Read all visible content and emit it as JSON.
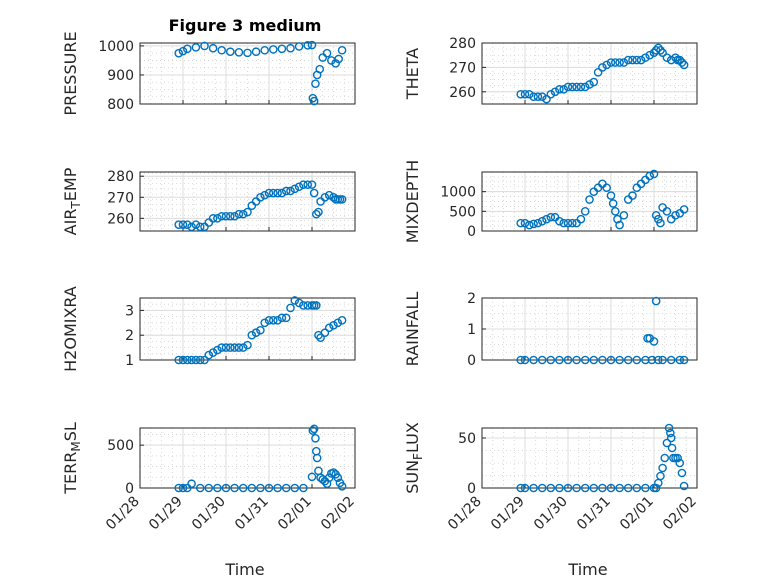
{
  "figure": {
    "title": "Figure 3 medium",
    "accent_color": "#0072bd",
    "x_tick_labels": [
      "01/28",
      "01/29",
      "01/30",
      "01/31",
      "02/01",
      "02/02"
    ],
    "x_label": "Time"
  },
  "chart_data": [
    {
      "type": "scatter",
      "ylabel": "PRESSURE",
      "xlim": [
        0,
        5
      ],
      "ylim": [
        800,
        1010
      ],
      "yticks": [
        800,
        900,
        1000
      ],
      "grid": true,
      "x": [
        0.9,
        1.0,
        1.1,
        1.3,
        1.5,
        1.7,
        1.9,
        2.1,
        2.3,
        2.5,
        2.7,
        2.9,
        3.1,
        3.3,
        3.5,
        3.7,
        3.9,
        4.0,
        4.02,
        4.05,
        4.08,
        4.12,
        4.18,
        4.25,
        4.35,
        4.45,
        4.55,
        4.62,
        4.7
      ],
      "y": [
        975,
        982,
        990,
        995,
        1000,
        992,
        985,
        980,
        978,
        976,
        980,
        985,
        988,
        990,
        992,
        998,
        1002,
        1003,
        820,
        810,
        870,
        900,
        920,
        960,
        975,
        950,
        940,
        955,
        985
      ]
    },
    {
      "type": "scatter",
      "ylabel": "THETA",
      "xlim": [
        0,
        5
      ],
      "ylim": [
        255,
        280
      ],
      "yticks": [
        260,
        270,
        280
      ],
      "grid": true,
      "x": [
        0.9,
        1.0,
        1.1,
        1.2,
        1.3,
        1.4,
        1.5,
        1.6,
        1.7,
        1.8,
        1.9,
        2.0,
        2.1,
        2.2,
        2.3,
        2.4,
        2.5,
        2.6,
        2.7,
        2.8,
        2.9,
        3.0,
        3.1,
        3.2,
        3.3,
        3.4,
        3.5,
        3.6,
        3.7,
        3.8,
        3.9,
        4.0,
        4.05,
        4.1,
        4.15,
        4.2,
        4.3,
        4.4,
        4.5,
        4.55,
        4.6,
        4.65,
        4.7
      ],
      "y": [
        259,
        259,
        259,
        258,
        258,
        258,
        257,
        259,
        260,
        261,
        261,
        262,
        262,
        262,
        262,
        262,
        263,
        264,
        268,
        270,
        271,
        272,
        272,
        272,
        272,
        273,
        273,
        273,
        273,
        274,
        275,
        276,
        277,
        278,
        277,
        276,
        274,
        273,
        274,
        273,
        273,
        272,
        271
      ]
    },
    {
      "type": "scatter",
      "ylabel": "AIR_TEMP",
      "xlim": [
        0,
        5
      ],
      "ylim": [
        254,
        282
      ],
      "yticks": [
        260,
        270,
        280
      ],
      "grid": true,
      "x": [
        0.9,
        1.0,
        1.1,
        1.2,
        1.3,
        1.4,
        1.5,
        1.6,
        1.7,
        1.8,
        1.9,
        2.0,
        2.1,
        2.2,
        2.3,
        2.4,
        2.5,
        2.6,
        2.7,
        2.8,
        2.9,
        3.0,
        3.1,
        3.2,
        3.3,
        3.4,
        3.5,
        3.6,
        3.7,
        3.8,
        3.9,
        4.0,
        4.05,
        4.1,
        4.15,
        4.2,
        4.3,
        4.4,
        4.5,
        4.55,
        4.6,
        4.65,
        4.7
      ],
      "y": [
        257,
        257,
        257,
        256,
        257,
        256,
        256,
        258,
        260,
        260,
        261,
        261,
        261,
        261,
        262,
        262,
        263,
        266,
        268,
        270,
        271,
        272,
        272,
        272,
        272,
        273,
        273,
        274,
        275,
        276,
        276,
        276,
        272,
        262,
        263,
        268,
        270,
        271,
        270,
        269,
        269,
        269,
        269
      ]
    },
    {
      "type": "scatter",
      "ylabel": "MIXDEPTH",
      "xlim": [
        0,
        5
      ],
      "ylim": [
        0,
        1500
      ],
      "yticks": [
        0,
        500,
        1000
      ],
      "grid": true,
      "x": [
        0.9,
        1.0,
        1.1,
        1.2,
        1.3,
        1.4,
        1.5,
        1.6,
        1.7,
        1.8,
        1.9,
        2.0,
        2.1,
        2.2,
        2.3,
        2.4,
        2.5,
        2.6,
        2.7,
        2.8,
        2.9,
        3.0,
        3.05,
        3.1,
        3.15,
        3.2,
        3.3,
        3.4,
        3.5,
        3.6,
        3.7,
        3.8,
        3.9,
        4.0,
        4.05,
        4.1,
        4.15,
        4.2,
        4.3,
        4.4,
        4.5,
        4.6,
        4.7
      ],
      "y": [
        200,
        200,
        150,
        180,
        200,
        250,
        300,
        350,
        350,
        250,
        200,
        200,
        200,
        200,
        300,
        500,
        800,
        1000,
        1100,
        1200,
        1100,
        900,
        700,
        500,
        300,
        150,
        400,
        800,
        900,
        1100,
        1200,
        1300,
        1400,
        1450,
        400,
        300,
        200,
        600,
        500,
        300,
        400,
        450,
        550
      ]
    },
    {
      "type": "scatter",
      "ylabel": "H2OMIXRA",
      "xlim": [
        0,
        5
      ],
      "ylim": [
        1,
        3.5
      ],
      "yticks": [
        1,
        2,
        3
      ],
      "grid": true,
      "x": [
        0.9,
        1.0,
        1.1,
        1.2,
        1.3,
        1.4,
        1.5,
        1.6,
        1.7,
        1.8,
        1.9,
        2.0,
        2.1,
        2.2,
        2.3,
        2.4,
        2.5,
        2.6,
        2.7,
        2.8,
        2.9,
        3.0,
        3.1,
        3.2,
        3.3,
        3.4,
        3.5,
        3.6,
        3.7,
        3.8,
        3.9,
        4.0,
        4.05,
        4.1,
        4.15,
        4.2,
        4.3,
        4.4,
        4.5,
        4.6,
        4.7
      ],
      "y": [
        1,
        1,
        1,
        1,
        1,
        1,
        1,
        1.2,
        1.3,
        1.4,
        1.5,
        1.5,
        1.5,
        1.5,
        1.5,
        1.5,
        1.6,
        2,
        2.1,
        2.2,
        2.5,
        2.6,
        2.6,
        2.6,
        2.7,
        2.7,
        3.1,
        3.4,
        3.3,
        3.2,
        3.2,
        3.2,
        3.2,
        3.2,
        2,
        1.9,
        2.1,
        2.3,
        2.4,
        2.5,
        2.6
      ]
    },
    {
      "type": "scatter",
      "ylabel": "RAINFALL",
      "xlim": [
        0,
        5
      ],
      "ylim": [
        0,
        2
      ],
      "yticks": [
        0,
        1,
        2
      ],
      "grid": true,
      "x": [
        0.9,
        1.0,
        1.2,
        1.4,
        1.6,
        1.8,
        2.0,
        2.2,
        2.4,
        2.6,
        2.8,
        3.0,
        3.2,
        3.4,
        3.6,
        3.8,
        3.85,
        3.9,
        3.95,
        4.0,
        4.05,
        4.1,
        4.2,
        4.4,
        4.6,
        4.7
      ],
      "y": [
        0,
        0,
        0,
        0,
        0,
        0,
        0,
        0,
        0,
        0,
        0,
        0,
        0,
        0,
        0,
        0,
        0.7,
        0.7,
        0,
        0.6,
        1.9,
        0,
        0,
        0,
        0,
        0
      ]
    },
    {
      "type": "scatter",
      "ylabel": "TERR_MSL",
      "xlim": [
        0,
        5
      ],
      "ylim": [
        0,
        700
      ],
      "yticks": [
        0,
        500
      ],
      "grid": true,
      "x": [
        0.9,
        1.0,
        1.1,
        1.2,
        1.4,
        1.6,
        1.8,
        2.0,
        2.2,
        2.4,
        2.6,
        2.8,
        3.0,
        3.2,
        3.4,
        3.6,
        3.8,
        4.0,
        4.02,
        4.05,
        4.08,
        4.1,
        4.12,
        4.15,
        4.2,
        4.25,
        4.3,
        4.35,
        4.4,
        4.45,
        4.5,
        4.55,
        4.6,
        4.65,
        4.7
      ],
      "y": [
        0,
        0,
        0,
        50,
        0,
        0,
        0,
        0,
        0,
        0,
        0,
        0,
        0,
        0,
        0,
        0,
        0,
        130,
        670,
        690,
        580,
        430,
        350,
        200,
        120,
        100,
        80,
        50,
        120,
        170,
        180,
        160,
        120,
        60,
        20
      ]
    },
    {
      "type": "scatter",
      "ylabel": "SUN_FLUX",
      "xlim": [
        0,
        5
      ],
      "ylim": [
        0,
        60
      ],
      "yticks": [
        0,
        50
      ],
      "grid": true,
      "x": [
        0.9,
        1.0,
        1.2,
        1.4,
        1.6,
        1.8,
        2.0,
        2.2,
        2.4,
        2.6,
        2.8,
        3.0,
        3.2,
        3.4,
        3.6,
        3.8,
        4.0,
        4.05,
        4.1,
        4.15,
        4.2,
        4.25,
        4.3,
        4.35,
        4.38,
        4.4,
        4.42,
        4.45,
        4.5,
        4.55,
        4.6,
        4.65,
        4.7
      ],
      "y": [
        0,
        0,
        0,
        0,
        0,
        0,
        0,
        0,
        0,
        0,
        0,
        0,
        0,
        0,
        0,
        0,
        0,
        0,
        5,
        12,
        20,
        30,
        45,
        60,
        55,
        50,
        40,
        30,
        30,
        30,
        25,
        15,
        2
      ]
    }
  ]
}
